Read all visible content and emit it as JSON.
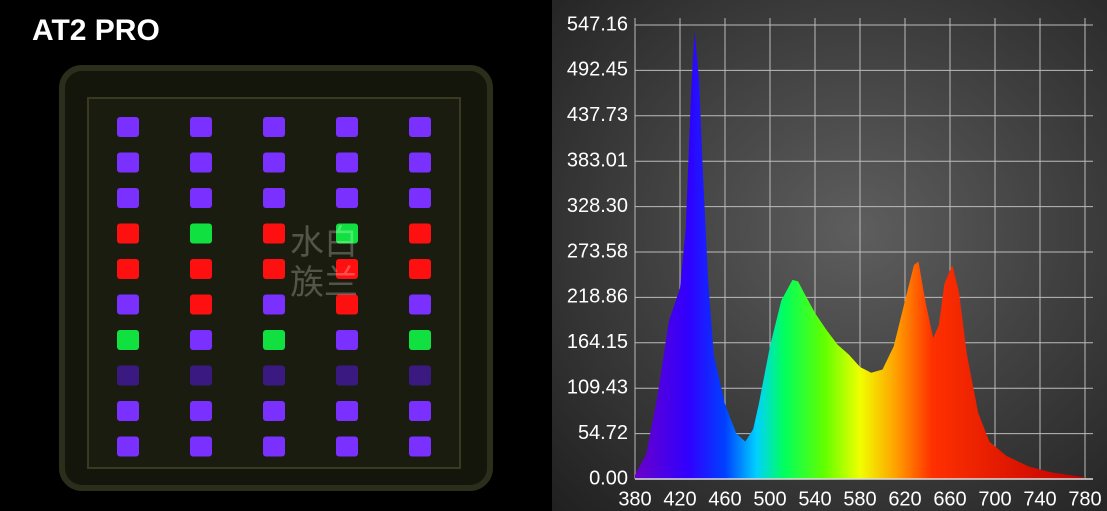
{
  "photo": {
    "label": "AT2 PRO",
    "watermark": [
      "水白",
      "族兰"
    ]
  },
  "chart_data": {
    "type": "area",
    "x": [
      380,
      390,
      400,
      410,
      420,
      425,
      430,
      433,
      437,
      440,
      445,
      450,
      460,
      470,
      478,
      485,
      490,
      500,
      510,
      520,
      525,
      530,
      540,
      550,
      560,
      570,
      580,
      590,
      600,
      610,
      620,
      628,
      632,
      638,
      645,
      650,
      655,
      662,
      668,
      675,
      685,
      695,
      710,
      730,
      750,
      780
    ],
    "values": [
      5,
      30,
      100,
      190,
      230,
      300,
      470,
      540,
      480,
      380,
      240,
      150,
      90,
      55,
      45,
      60,
      90,
      160,
      215,
      240,
      238,
      225,
      200,
      180,
      162,
      150,
      135,
      128,
      132,
      160,
      215,
      258,
      262,
      215,
      170,
      185,
      235,
      258,
      225,
      150,
      80,
      45,
      28,
      15,
      8,
      2
    ],
    "xlim": [
      380,
      780
    ],
    "xticks": [
      380,
      420,
      460,
      500,
      540,
      580,
      620,
      660,
      700,
      740,
      780
    ],
    "ylim": [
      0,
      547.16
    ],
    "yticks": [
      {
        "value": 0,
        "label": "0.00"
      },
      54.72,
      109.43,
      164.15,
      218.86,
      273.58,
      {
        "value": 328.3,
        "label": "328.30"
      },
      383.01,
      437.73,
      492.45,
      547.16
    ],
    "grid": true
  }
}
